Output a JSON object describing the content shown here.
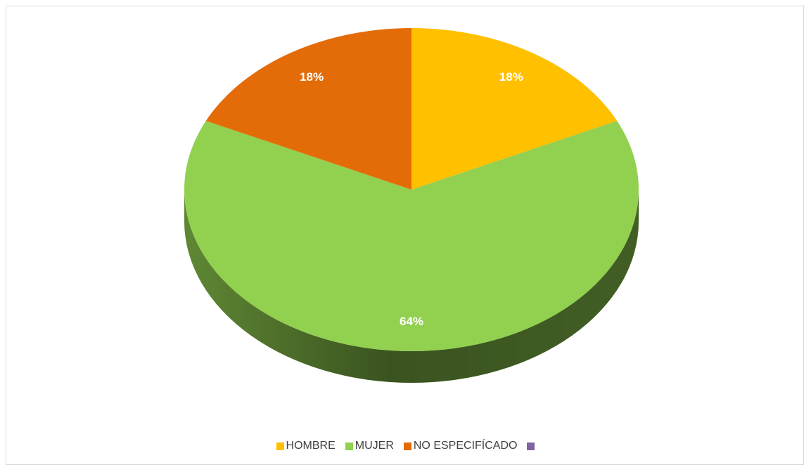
{
  "chart_data": {
    "type": "pie",
    "categories": [
      "HOMBRE",
      "MUJER",
      "NO ESPECIFÍCADO",
      null
    ],
    "values": [
      18,
      64,
      18,
      0
    ],
    "value_labels": [
      "18%",
      "64%",
      "18%",
      null
    ],
    "colors": [
      "#ffc000",
      "#92d050",
      "#e36c09",
      "#8064a2"
    ],
    "legend": "bottom"
  }
}
